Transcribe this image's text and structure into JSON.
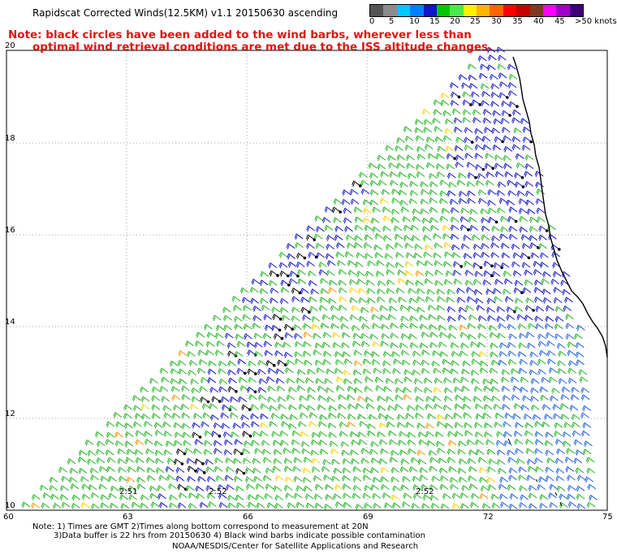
{
  "header": {
    "title": "Rapidscat Corrected Winds(12.5KM) v1.1 20150630 ascending",
    "note_line1": "Note: black circles have been added to the wind barbs, wherever less than",
    "note_line2": "optimal wind retrieval conditions are met due to the ISS altitude changes."
  },
  "legend": {
    "colors": [
      "#555555",
      "#8c8c8c",
      "#00c8ff",
      "#0080ff",
      "#1414c8",
      "#00c800",
      "#50e650",
      "#fff000",
      "#ffb400",
      "#ff6400",
      "#ff0000",
      "#c80000",
      "#7a3c1e",
      "#ff00ff",
      "#a000c8",
      "#3c0078"
    ],
    "ticks": [
      "0",
      "5",
      "10",
      "15",
      "20",
      "25",
      "30",
      "35",
      "40",
      "45",
      ">50 knots"
    ]
  },
  "map": {
    "y_labels": [
      "20",
      "18",
      "16",
      "14",
      "12",
      "10"
    ],
    "x_labels": [
      "60",
      "63",
      "66",
      "69",
      "72",
      "75"
    ],
    "time_labels": [
      "2:51",
      "2:52",
      "2:52"
    ]
  },
  "footer": {
    "note_line1": "Note: 1) Times are GMT 2)Times along bottom correspond to measurement at 20N",
    "note_line2": "3)Data buffer is 22 hrs from 20150630 4) Black wind barbs indicate possible contamination",
    "credit": "NOAA/NESDIS/Center for Satellite Applications and Research"
  }
}
